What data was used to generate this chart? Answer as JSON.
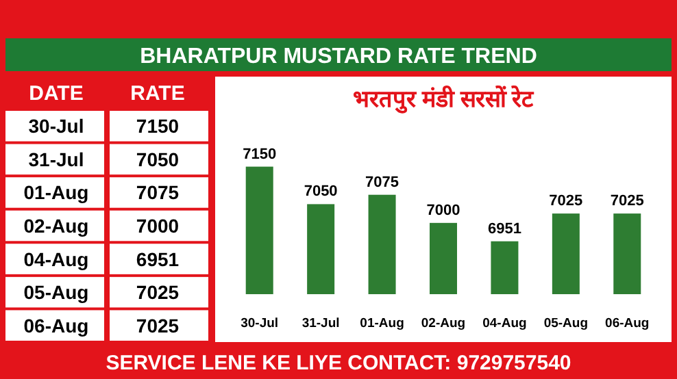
{
  "chart_data": [
    {
      "type": "other",
      "annotations": [
        "DATE",
        "RATE",
        "30-Jul",
        "7150",
        "31-Jul",
        "7050",
        "01-Aug",
        "7075",
        "02-Aug",
        "7000",
        "04-Aug",
        "6951",
        "05-Aug",
        "7025",
        "06-Aug",
        "7025"
      ]
    },
    {
      "type": "bar",
      "title": "BHARATPUR MUSTARD RATE TREND",
      "subtitle": "भरतपुर मंडी सरसों रेट",
      "categories": [
        "30-Jul",
        "31-Jul",
        "01-Aug",
        "02-Aug",
        "04-Aug",
        "05-Aug",
        "06-Aug"
      ],
      "values": [
        7150,
        7050,
        7075,
        7000,
        6951,
        7025,
        7025
      ],
      "color": "#2e7d32",
      "ylim": [
        6810,
        7390
      ],
      "data_labels": true,
      "annotations": [
        "SERVICE LENE KE LIYE CONTACT: 9729757540"
      ]
    }
  ]
}
